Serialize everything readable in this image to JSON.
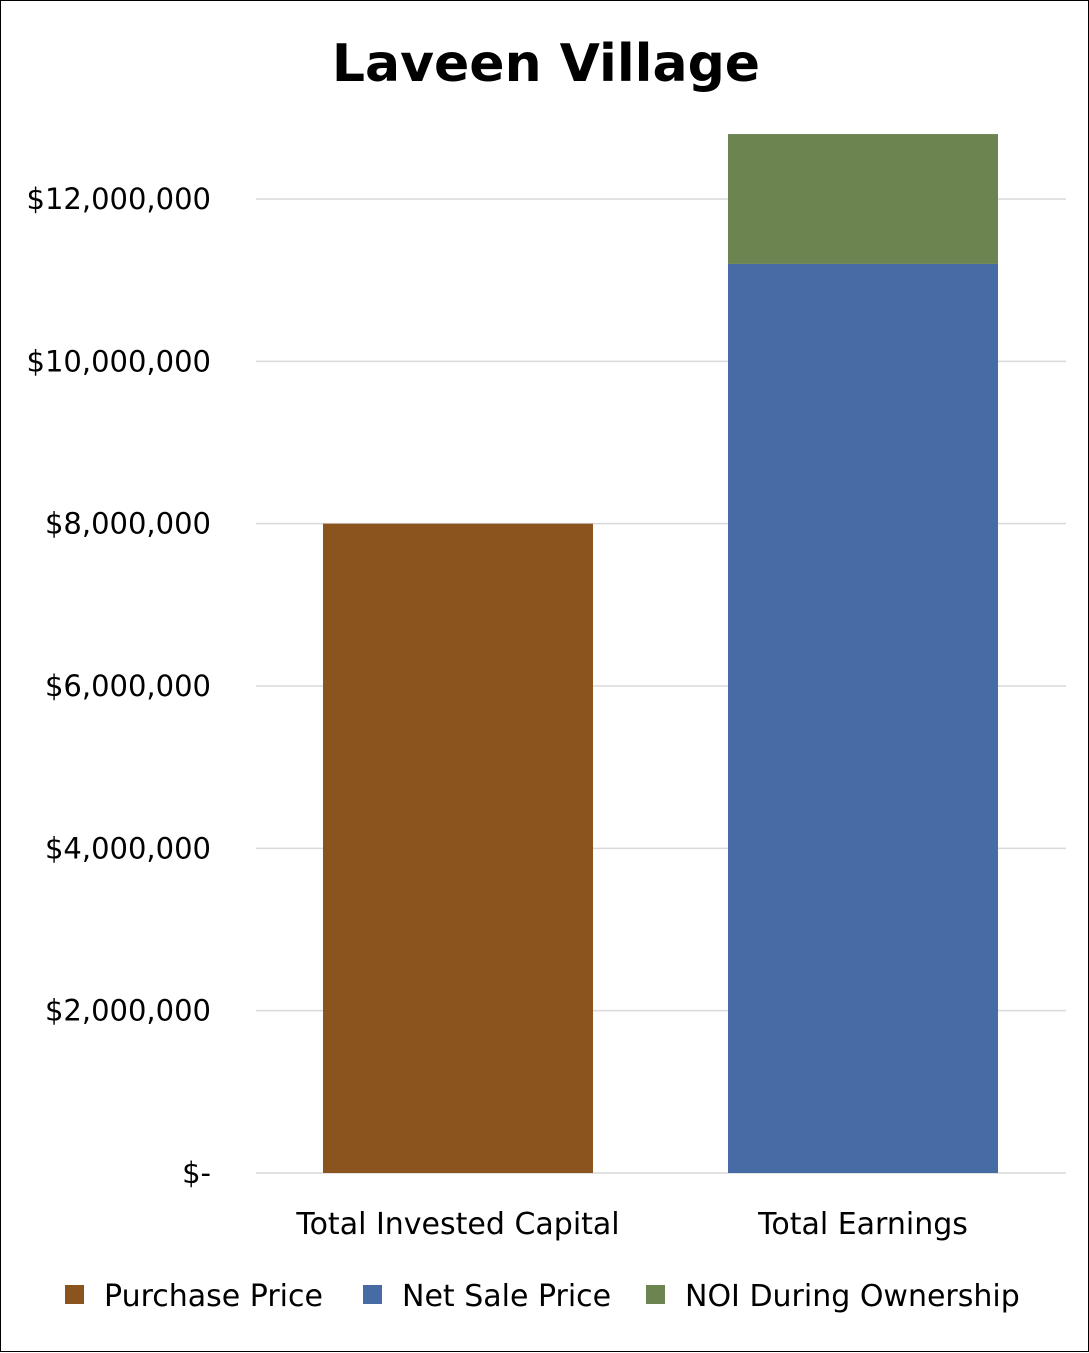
{
  "chart_data": {
    "type": "bar",
    "stacked": true,
    "title": "Laveen Village",
    "xlabel": "",
    "ylabel": "",
    "categories": [
      "Total Invested Capital",
      "Total Earnings"
    ],
    "series": [
      {
        "name": "Purchase Price",
        "color": "#8b541e",
        "values": [
          8000000,
          0
        ]
      },
      {
        "name": "Net Sale Price",
        "color": "#476ba5",
        "values": [
          0,
          11200000
        ]
      },
      {
        "name": "NOI During Ownership",
        "color": "#6b8450",
        "values": [
          0,
          1600000
        ]
      }
    ],
    "ylim": [
      0,
      12800000
    ],
    "yticks": [
      0,
      2000000,
      4000000,
      6000000,
      8000000,
      10000000,
      12000000
    ],
    "ytick_labels": [
      "$-",
      "$2,000,000",
      "$4,000,000",
      "$6,000,000",
      "$8,000,000",
      "$10,000,000",
      "$12,000,000"
    ],
    "grid": true,
    "legend": "bottom"
  }
}
